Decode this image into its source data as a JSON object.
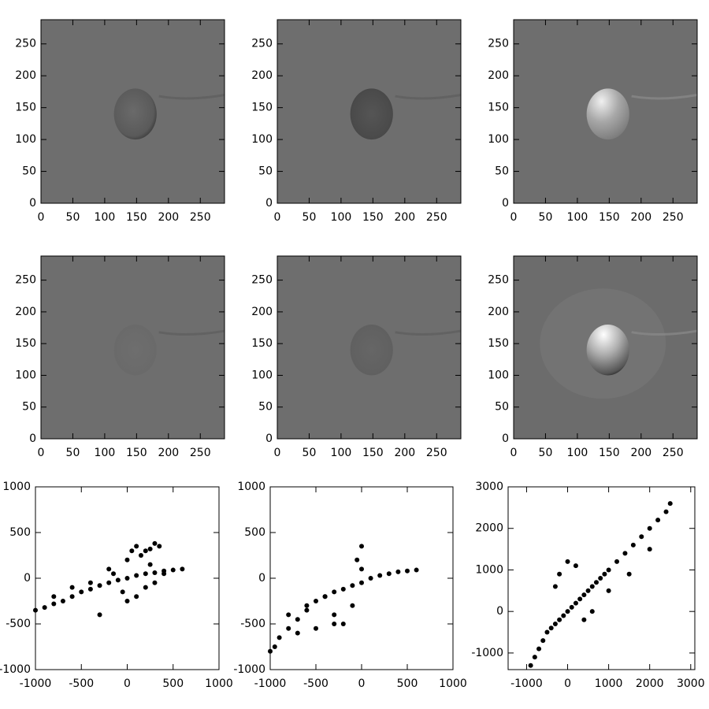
{
  "chart_data": [
    {
      "type": "image",
      "xlim": [
        0,
        288
      ],
      "ylim": [
        0,
        288
      ],
      "xticks": [
        0,
        50,
        100,
        150,
        200,
        250
      ],
      "yticks": [
        0,
        50,
        100,
        150,
        200,
        250
      ]
    },
    {
      "type": "image",
      "xlim": [
        0,
        288
      ],
      "ylim": [
        0,
        288
      ],
      "xticks": [
        0,
        50,
        100,
        150,
        200,
        250
      ],
      "yticks": [
        0,
        50,
        100,
        150,
        200,
        250
      ]
    },
    {
      "type": "image",
      "xlim": [
        0,
        288
      ],
      "ylim": [
        0,
        288
      ],
      "xticks": [
        0,
        50,
        100,
        150,
        200,
        250
      ],
      "yticks": [
        0,
        50,
        100,
        150,
        200,
        250
      ]
    },
    {
      "type": "image",
      "xlim": [
        0,
        288
      ],
      "ylim": [
        0,
        288
      ],
      "xticks": [
        0,
        50,
        100,
        150,
        200,
        250
      ],
      "yticks": [
        0,
        50,
        100,
        150,
        200,
        250
      ]
    },
    {
      "type": "image",
      "xlim": [
        0,
        288
      ],
      "ylim": [
        0,
        288
      ],
      "xticks": [
        0,
        50,
        100,
        150,
        200,
        250
      ],
      "yticks": [
        0,
        50,
        100,
        150,
        200,
        250
      ]
    },
    {
      "type": "image",
      "xlim": [
        0,
        288
      ],
      "ylim": [
        0,
        288
      ],
      "xticks": [
        0,
        50,
        100,
        150,
        200,
        250
      ],
      "yticks": [
        0,
        50,
        100,
        150,
        200,
        250
      ]
    },
    {
      "type": "scatter",
      "color": "#000000",
      "xlim": [
        -1000,
        1000
      ],
      "ylim": [
        -1000,
        1000
      ],
      "xticks": [
        -1000,
        -500,
        0,
        500,
        1000
      ],
      "yticks": [
        -1000,
        -500,
        0,
        500,
        1000
      ],
      "x": [
        -1000,
        -900,
        -800,
        -700,
        -600,
        -500,
        -400,
        -300,
        -200,
        -100,
        0,
        100,
        200,
        300,
        400,
        500,
        600,
        -800,
        -600,
        -400,
        -200,
        0,
        50,
        100,
        150,
        200,
        250,
        300,
        350,
        -50,
        0,
        100,
        200,
        300,
        -300,
        -150,
        250,
        400
      ],
      "y": [
        -350,
        -320,
        -280,
        -250,
        -200,
        -150,
        -120,
        -80,
        -50,
        -20,
        0,
        30,
        50,
        60,
        80,
        90,
        100,
        -200,
        -100,
        -50,
        100,
        200,
        300,
        350,
        250,
        300,
        320,
        380,
        350,
        -150,
        -250,
        -200,
        -100,
        -50,
        -400,
        50,
        150,
        50
      ]
    },
    {
      "type": "scatter",
      "color": "#000000",
      "xlim": [
        -1000,
        1000
      ],
      "ylim": [
        -1000,
        1000
      ],
      "xticks": [
        -1000,
        -500,
        0,
        500,
        1000
      ],
      "yticks": [
        -1000,
        -500,
        0,
        500,
        1000
      ],
      "x": [
        -1000,
        -950,
        -900,
        -800,
        -700,
        -600,
        -500,
        -400,
        -300,
        -200,
        -100,
        0,
        100,
        200,
        300,
        400,
        500,
        600,
        -800,
        -600,
        -400,
        -300,
        -200,
        -100,
        0,
        -50,
        0,
        -700,
        -500,
        -300
      ],
      "y": [
        -800,
        -750,
        -650,
        -550,
        -450,
        -350,
        -250,
        -200,
        -150,
        -120,
        -80,
        -50,
        0,
        30,
        50,
        70,
        80,
        90,
        -400,
        -300,
        -200,
        -400,
        -500,
        -300,
        350,
        200,
        100,
        -600,
        -550,
        -500
      ]
    },
    {
      "type": "scatter",
      "color": "#000000",
      "xlim": [
        -1450,
        3100
      ],
      "ylim": [
        -1400,
        3000
      ],
      "xticks": [
        -1000,
        0,
        1000,
        2000,
        3000
      ],
      "yticks": [
        -1000,
        0,
        1000,
        2000,
        3000
      ],
      "x": [
        -900,
        -800,
        -700,
        -600,
        -500,
        -400,
        -300,
        -200,
        -100,
        0,
        100,
        200,
        300,
        400,
        500,
        600,
        700,
        800,
        900,
        1000,
        1200,
        1400,
        1600,
        1800,
        2000,
        2200,
        2400,
        2500,
        -300,
        -200,
        0,
        200,
        400,
        600,
        1000,
        1500,
        2000
      ],
      "y": [
        -1300,
        -1100,
        -900,
        -700,
        -500,
        -400,
        -300,
        -200,
        -100,
        0,
        100,
        200,
        300,
        400,
        500,
        600,
        700,
        800,
        900,
        1000,
        1200,
        1400,
        1600,
        1800,
        2000,
        2200,
        2400,
        2600,
        600,
        900,
        1200,
        1100,
        -200,
        0,
        500,
        900,
        1500
      ]
    }
  ]
}
